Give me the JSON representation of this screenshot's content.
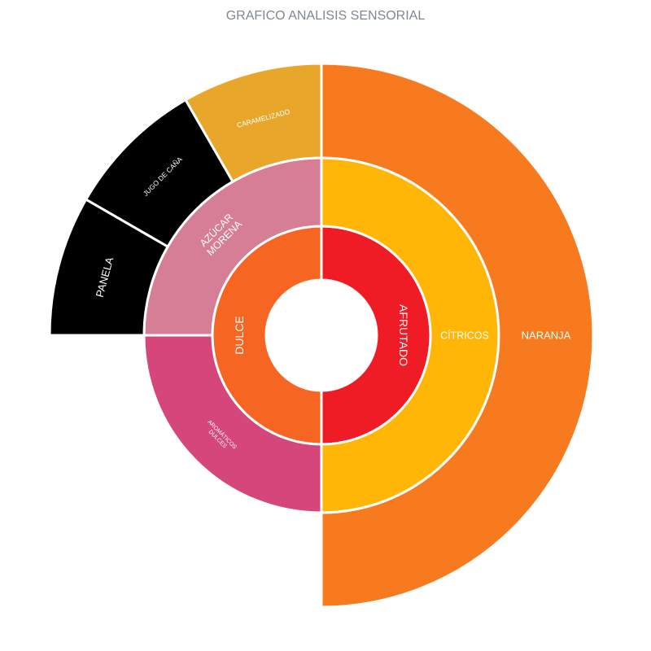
{
  "chart_data": {
    "type": "sunburst",
    "title": "GRAFICO ANALISIS SENSORIAL",
    "rings": [
      [
        {
          "label": "AFRUTADO",
          "start": 0.0,
          "end": 0.5,
          "color": "#ef1c25"
        },
        {
          "label": "DULCE",
          "start": 0.5,
          "end": 1.0,
          "color": "#f76523"
        }
      ],
      [
        {
          "label": "CÍTRICOS",
          "start": 0.0,
          "end": 0.5,
          "color": "#ffb606"
        },
        {
          "label": "AROMÁTICOS\nDULCES",
          "start": 0.5,
          "end": 0.75,
          "color": "#d5477a"
        },
        {
          "label": "AZÚCAR\nMORENA",
          "start": 0.75,
          "end": 1.0,
          "color": "#d57e95"
        }
      ],
      [
        {
          "label": "NARANJA",
          "start": 0.0,
          "end": 0.5,
          "color": "#f77b1e"
        },
        {
          "label": "PANELA",
          "start": 0.75,
          "end": 0.8333,
          "color": "#000000"
        },
        {
          "label": "JUGO DE CAÑA",
          "start": 0.8333,
          "end": 0.9167,
          "color": "#000000"
        },
        {
          "label": "CARAMELIZADO",
          "start": 0.9167,
          "end": 1.0,
          "color": "#e8a72b"
        }
      ]
    ]
  }
}
